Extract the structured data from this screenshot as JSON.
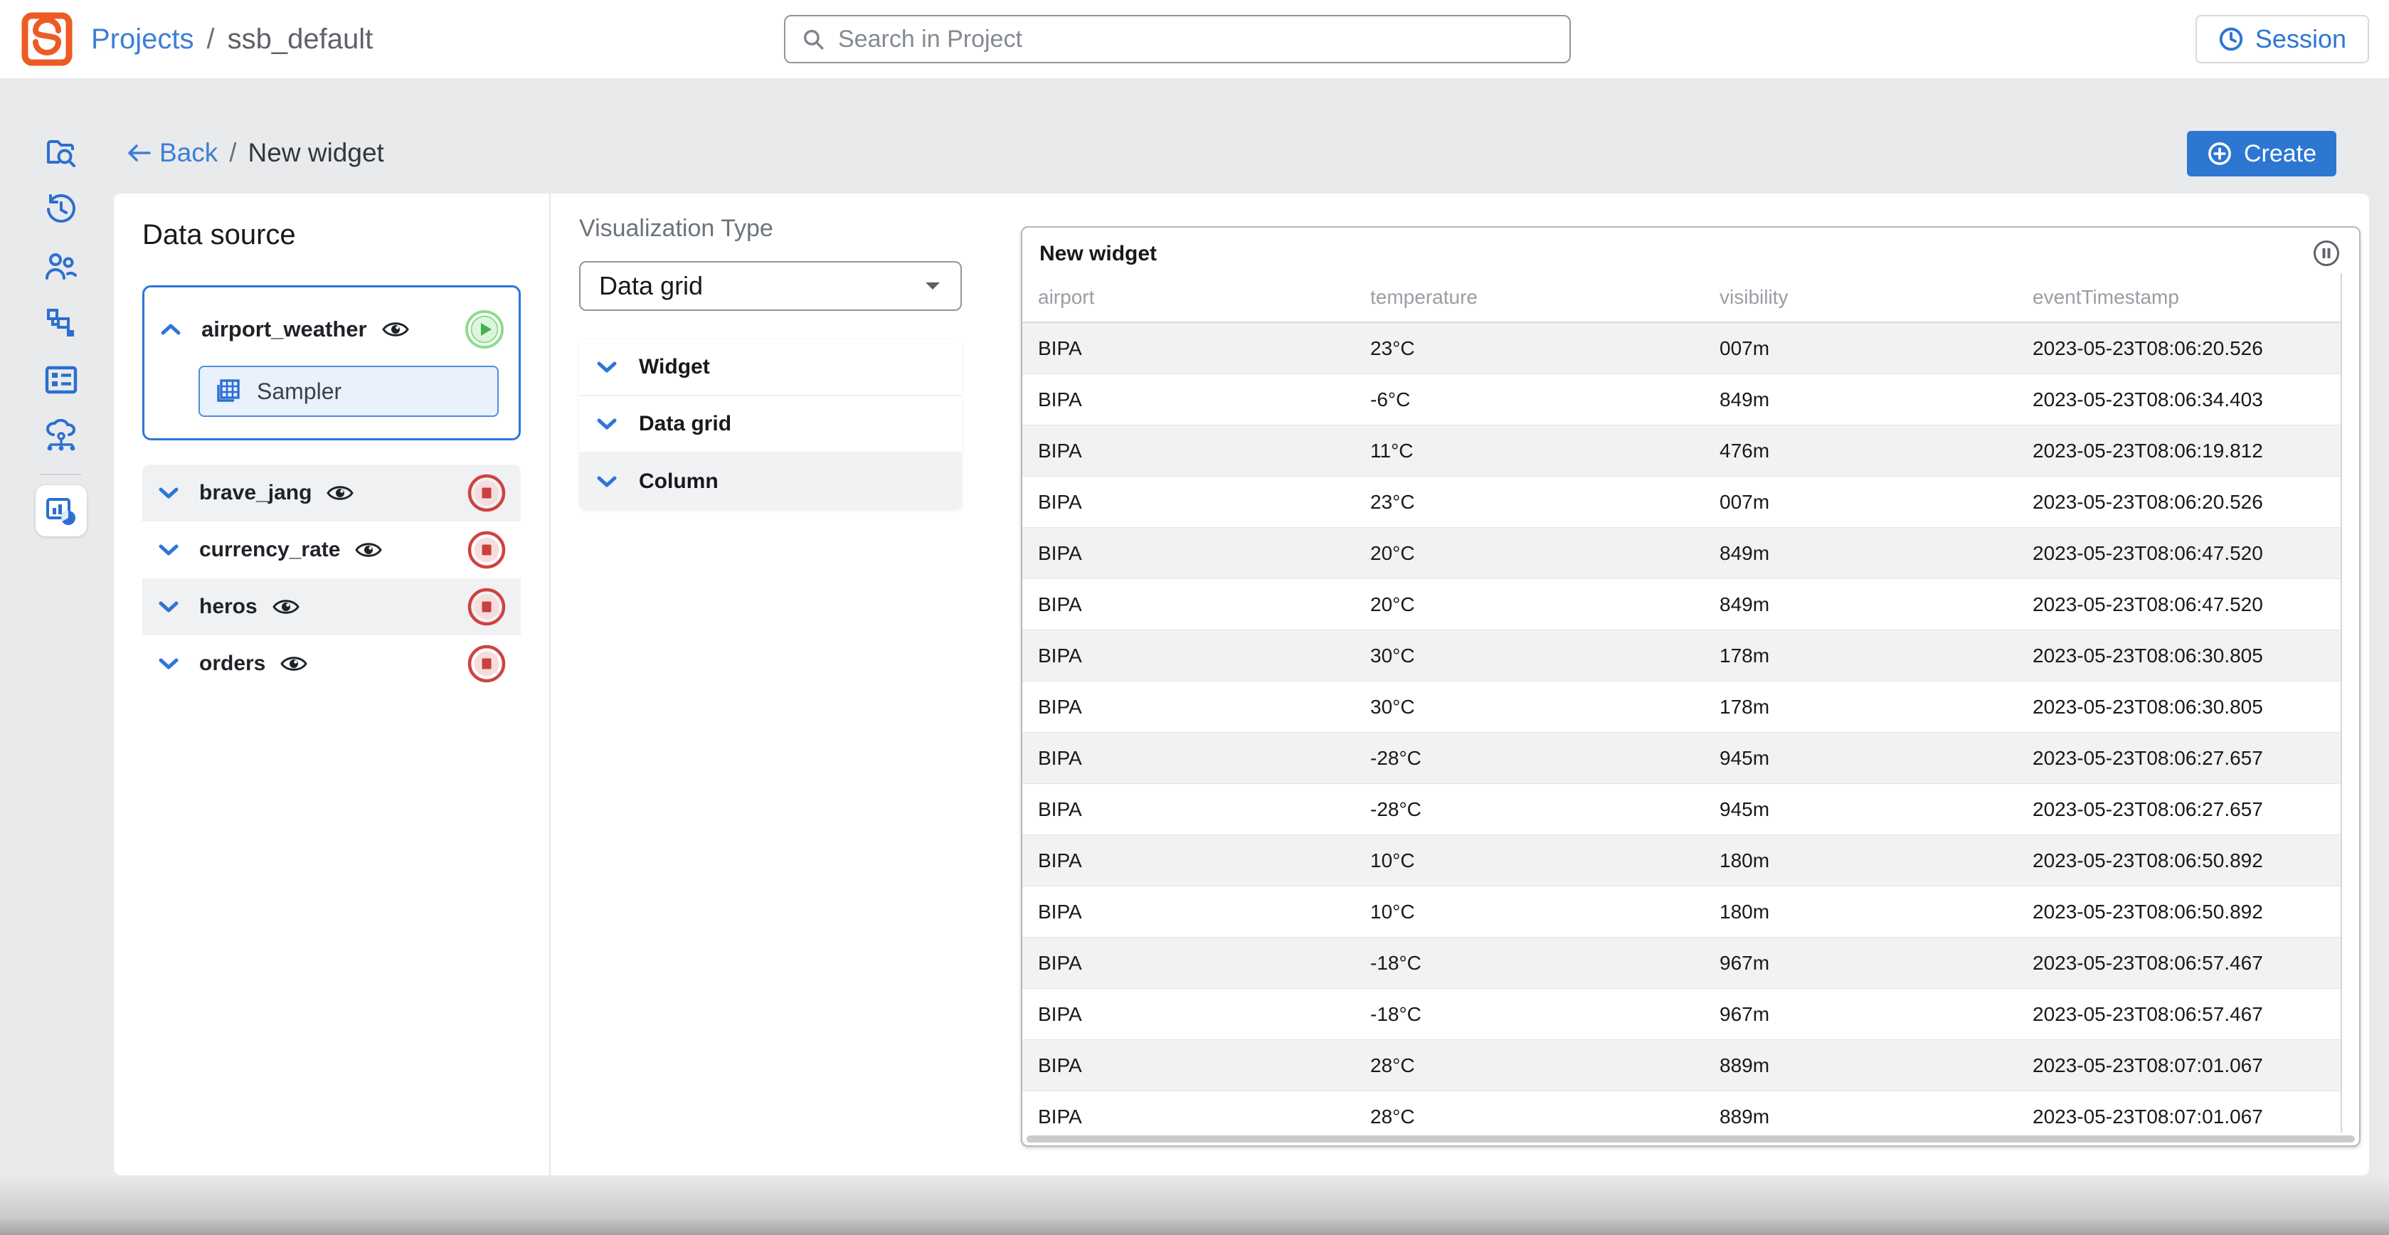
{
  "header": {
    "breadcrumb": {
      "projects": "Projects",
      "separator": "/",
      "project": "ssb_default"
    },
    "search": {
      "placeholder": "Search in Project"
    },
    "session_label": "Session"
  },
  "sidebar": {
    "items": [
      {
        "name": "explorer"
      },
      {
        "name": "history"
      },
      {
        "name": "users"
      },
      {
        "name": "jobs"
      },
      {
        "name": "tables"
      },
      {
        "name": "data-sources"
      },
      {
        "name": "widgets",
        "active": true
      }
    ]
  },
  "toolbar": {
    "back_label": "Back",
    "separator": "/",
    "page_title": "New widget",
    "create_label": "Create"
  },
  "data_source": {
    "title": "Data source",
    "selected": {
      "name": "airport_weather",
      "sampler_label": "Sampler"
    },
    "items": [
      {
        "label": "brave_jang"
      },
      {
        "label": "currency_rate"
      },
      {
        "label": "heros"
      },
      {
        "label": "orders"
      }
    ]
  },
  "visualization": {
    "label": "Visualization Type",
    "selected_type": "Data grid",
    "sections": [
      {
        "label": "Widget"
      },
      {
        "label": "Data grid"
      },
      {
        "label": "Column"
      }
    ]
  },
  "preview": {
    "title": "New widget",
    "columns": [
      "airport",
      "temperature",
      "visibility",
      "eventTimestamp"
    ],
    "rows": [
      [
        "BIPA",
        "23°C",
        "007m",
        "2023-05-23T08:06:20.526"
      ],
      [
        "BIPA",
        "-6°C",
        "849m",
        "2023-05-23T08:06:34.403"
      ],
      [
        "BIPA",
        "11°C",
        "476m",
        "2023-05-23T08:06:19.812"
      ],
      [
        "BIPA",
        "23°C",
        "007m",
        "2023-05-23T08:06:20.526"
      ],
      [
        "BIPA",
        "20°C",
        "849m",
        "2023-05-23T08:06:47.520"
      ],
      [
        "BIPA",
        "20°C",
        "849m",
        "2023-05-23T08:06:47.520"
      ],
      [
        "BIPA",
        "30°C",
        "178m",
        "2023-05-23T08:06:30.805"
      ],
      [
        "BIPA",
        "30°C",
        "178m",
        "2023-05-23T08:06:30.805"
      ],
      [
        "BIPA",
        "-28°C",
        "945m",
        "2023-05-23T08:06:27.657"
      ],
      [
        "BIPA",
        "-28°C",
        "945m",
        "2023-05-23T08:06:27.657"
      ],
      [
        "BIPA",
        "10°C",
        "180m",
        "2023-05-23T08:06:50.892"
      ],
      [
        "BIPA",
        "10°C",
        "180m",
        "2023-05-23T08:06:50.892"
      ],
      [
        "BIPA",
        "-18°C",
        "967m",
        "2023-05-23T08:06:57.467"
      ],
      [
        "BIPA",
        "-18°C",
        "967m",
        "2023-05-23T08:06:57.467"
      ],
      [
        "BIPA",
        "28°C",
        "889m",
        "2023-05-23T08:07:01.067"
      ],
      [
        "BIPA",
        "28°C",
        "889m",
        "2023-05-23T08:07:01.067"
      ]
    ]
  },
  "colors": {
    "accent_blue": "#2d77d2",
    "brand_orange": "#ec5b26",
    "play_green": "#44b24c",
    "stop_red": "#c8413e",
    "stripe_gray": "#f1f2f4",
    "page_bg": "#e9eaec"
  }
}
